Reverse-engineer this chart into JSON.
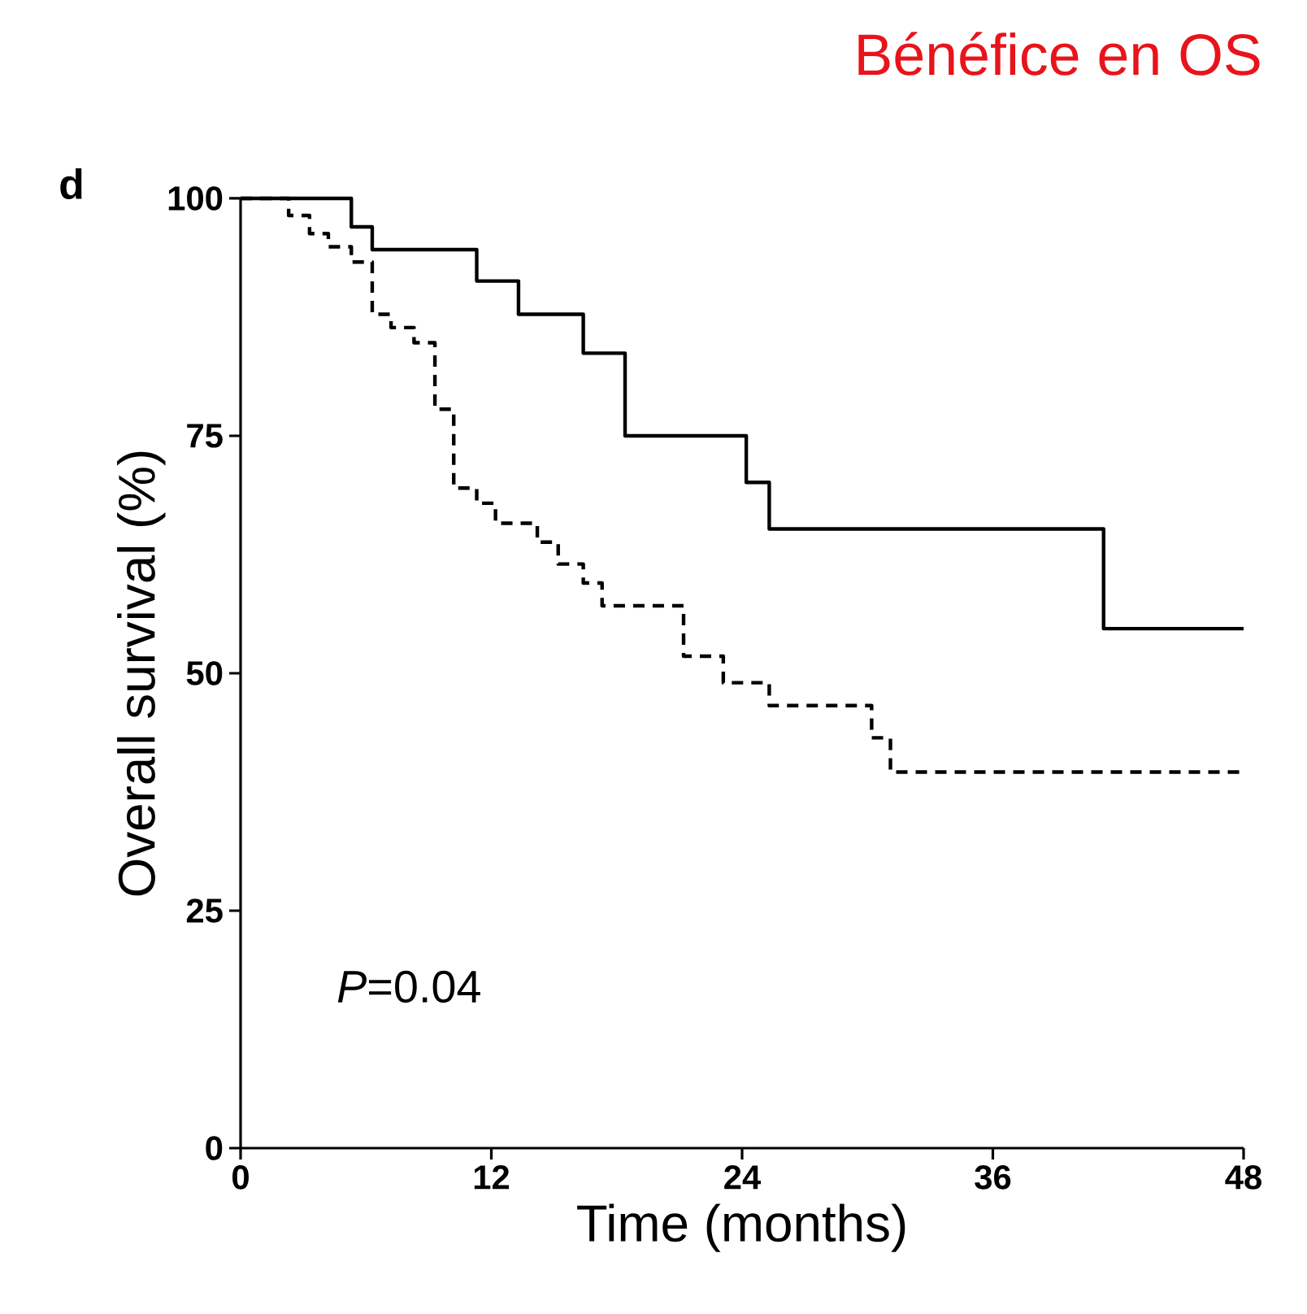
{
  "chart_data": {
    "type": "step",
    "title": "Bénéfice en OS",
    "xlabel": "Time (months)",
    "ylabel": "Overall survival (%)",
    "annotations": [
      "d",
      "*P*=0.04"
    ],
    "xlim": [
      0,
      48
    ],
    "xticks": [
      0,
      12,
      24,
      36,
      48
    ],
    "ylim": [
      0,
      100
    ],
    "yticks": [
      0,
      25,
      50,
      75,
      100
    ],
    "series": [
      {
        "color": "#000000",
        "line_style": "solid",
        "x": [
          0,
          5.3,
          6.3,
          11.3,
          13.3,
          16.4,
          18.4,
          24.2,
          25.3,
          41.3,
          48
        ],
        "values": [
          100,
          97,
          94.6,
          91.3,
          87.8,
          83.7,
          75,
          70.1,
          65.2,
          54.7,
          54.7
        ]
      },
      {
        "color": "#000000",
        "line_style": "dashed",
        "x": [
          0,
          2.3,
          3.3,
          4.2,
          5.3,
          6.3,
          7.2,
          8.3,
          9.3,
          10.2,
          11.3,
          12.2,
          14.2,
          15.2,
          16.4,
          17.3,
          21.2,
          23.1,
          25.3,
          30.2,
          31.1,
          48
        ],
        "values": [
          100,
          98.2,
          96.3,
          94.9,
          93.3,
          87.8,
          86.4,
          84.8,
          77.8,
          69.5,
          67.9,
          65.8,
          63.8,
          61.5,
          59.5,
          57.1,
          51.8,
          49,
          46.6,
          43.2,
          39.6,
          39.6
        ]
      }
    ]
  }
}
